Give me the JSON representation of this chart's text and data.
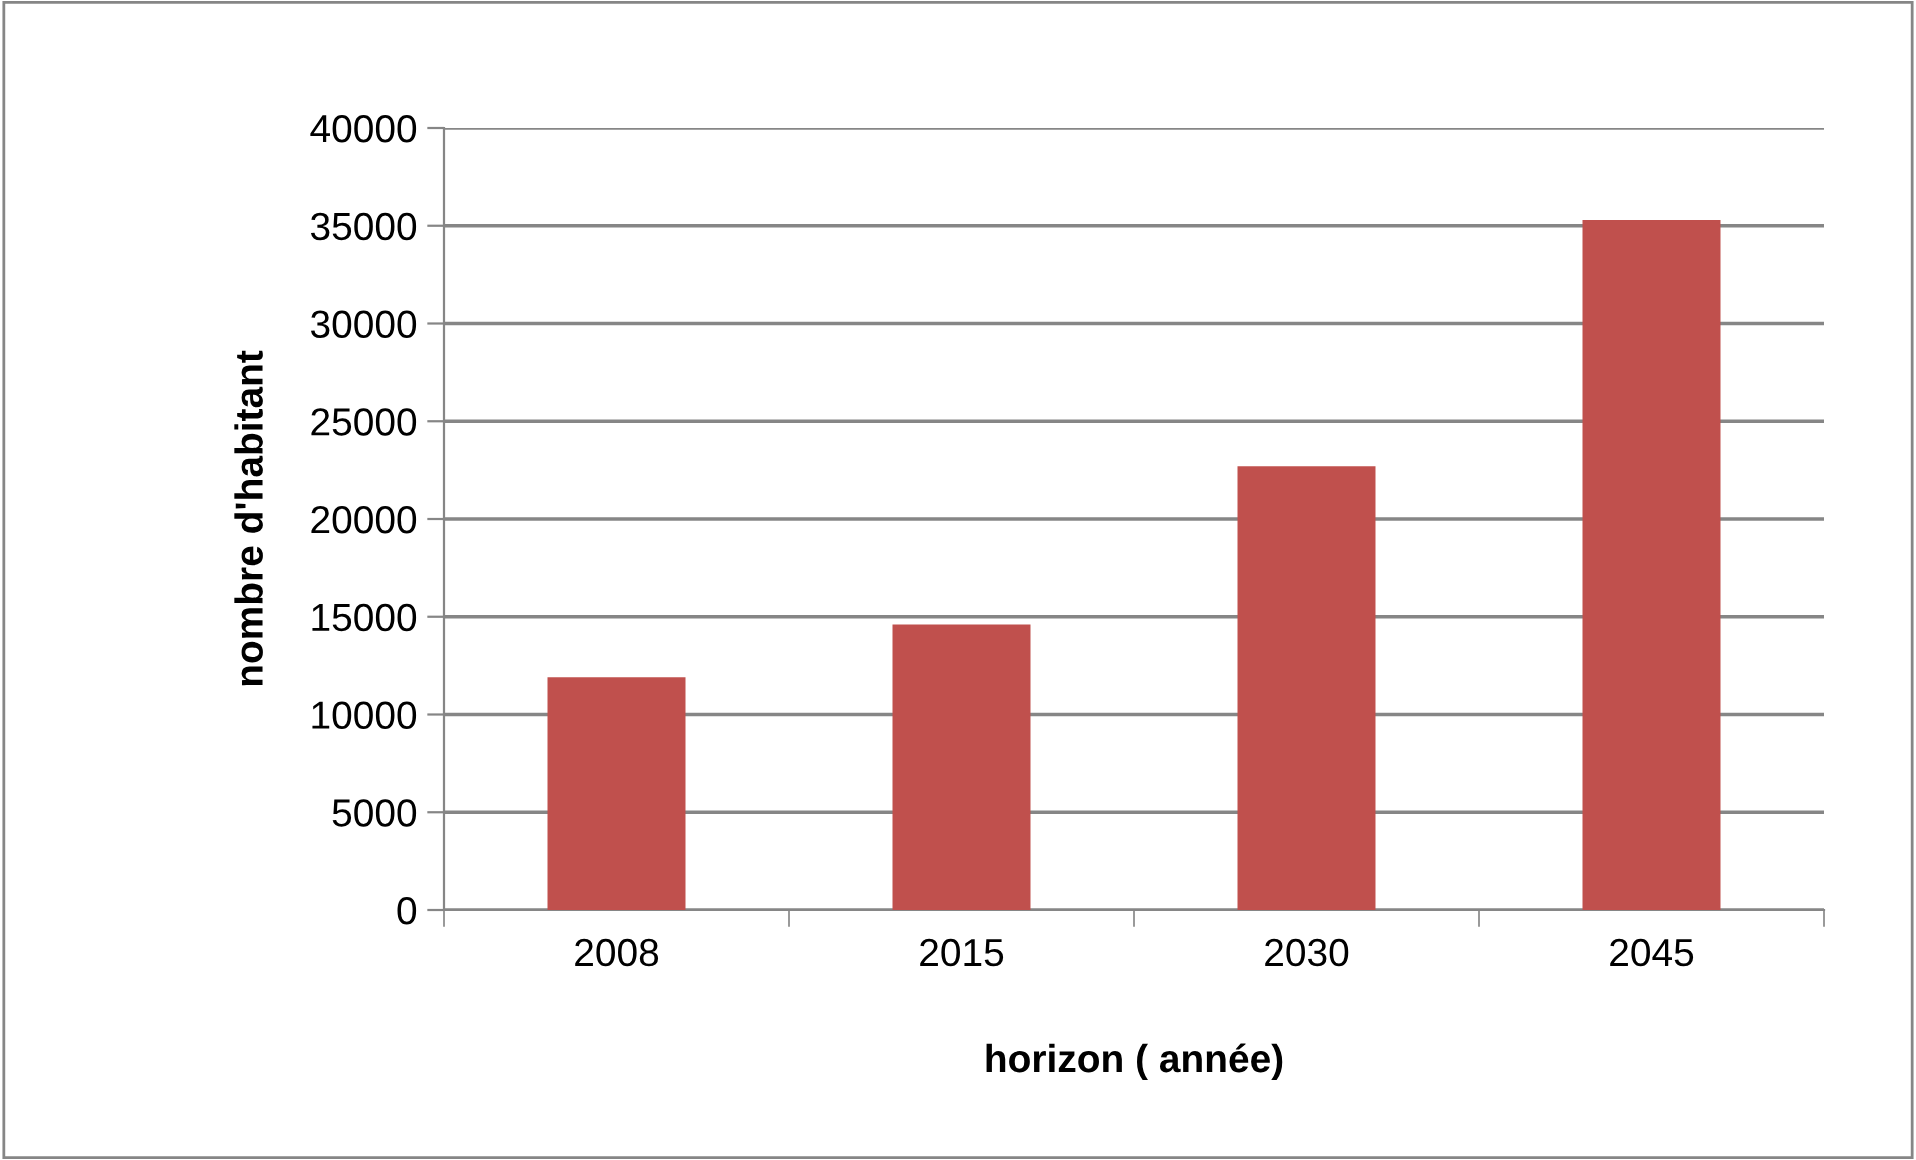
{
  "chart_data": {
    "type": "bar",
    "xlabel": "horizon ( année)",
    "ylabel": "nombre d'habitant",
    "categories": [
      "2008",
      "2015",
      "2030",
      "2045"
    ],
    "values": [
      11900,
      14600,
      22700,
      35300
    ],
    "color": "#c0504d",
    "ylim": [
      0,
      40000
    ],
    "yticks": [
      0,
      5000,
      10000,
      15000,
      20000,
      25000,
      30000,
      35000,
      40000
    ],
    "grid": "y",
    "legend": false
  }
}
